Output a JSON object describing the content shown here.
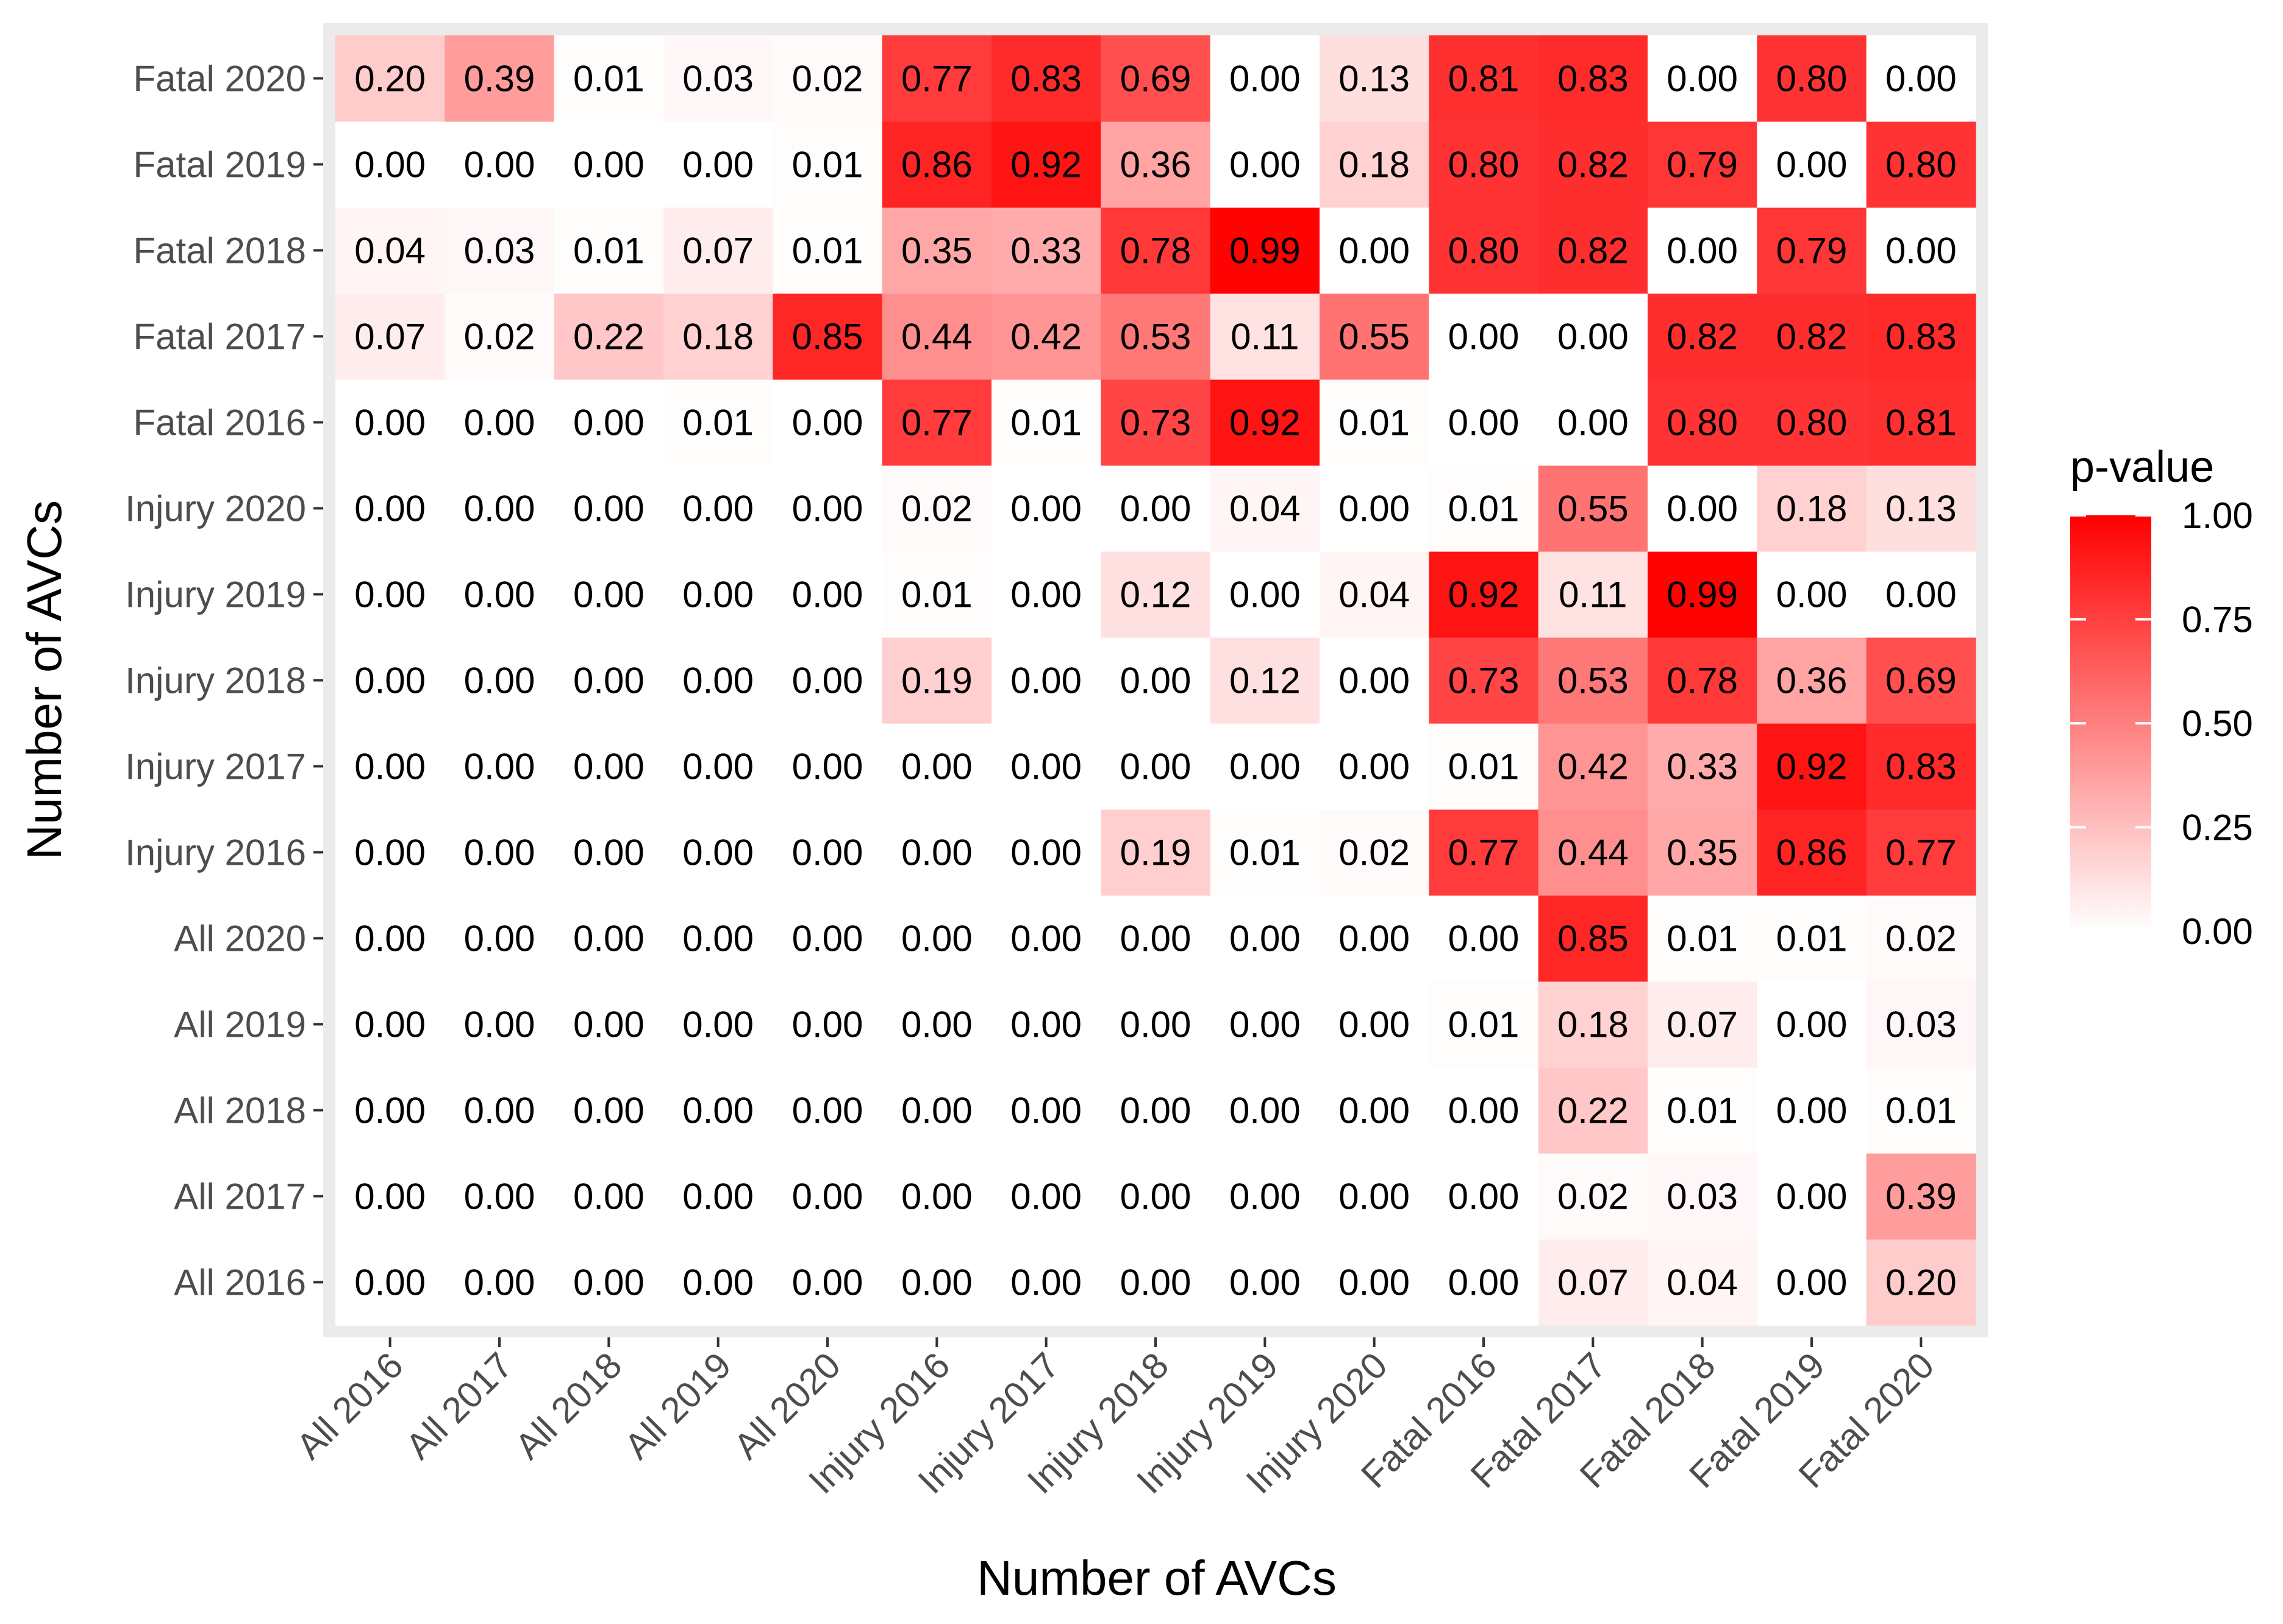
{
  "chart_data": {
    "type": "heatmap",
    "title": "",
    "xlabel": "Number of AVCs",
    "ylabel": "Number of AVCs",
    "x_categories": [
      "All 2016",
      "All 2017",
      "All 2018",
      "All 2019",
      "All 2020",
      "Injury 2016",
      "Injury 2017",
      "Injury 2018",
      "Injury 2019",
      "Injury 2020",
      "Fatal 2016",
      "Fatal 2017",
      "Fatal 2018",
      "Fatal 2019",
      "Fatal 2020"
    ],
    "y_categories": [
      "All 2016",
      "All 2017",
      "All 2018",
      "All 2019",
      "All 2020",
      "Injury 2016",
      "Injury 2017",
      "Injury 2018",
      "Injury 2019",
      "Injury 2020",
      "Fatal 2016",
      "Fatal 2017",
      "Fatal 2018",
      "Fatal 2019",
      "Fatal 2020"
    ],
    "values": [
      [
        0.0,
        0.0,
        0.0,
        0.0,
        0.0,
        0.0,
        0.0,
        0.0,
        0.0,
        0.0,
        0.0,
        0.07,
        0.04,
        0.0,
        0.2
      ],
      [
        0.0,
        0.0,
        0.0,
        0.0,
        0.0,
        0.0,
        0.0,
        0.0,
        0.0,
        0.0,
        0.0,
        0.02,
        0.03,
        0.0,
        0.39
      ],
      [
        0.0,
        0.0,
        0.0,
        0.0,
        0.0,
        0.0,
        0.0,
        0.0,
        0.0,
        0.0,
        0.0,
        0.22,
        0.01,
        0.0,
        0.01
      ],
      [
        0.0,
        0.0,
        0.0,
        0.0,
        0.0,
        0.0,
        0.0,
        0.0,
        0.0,
        0.0,
        0.01,
        0.18,
        0.07,
        0.0,
        0.03
      ],
      [
        0.0,
        0.0,
        0.0,
        0.0,
        0.0,
        0.0,
        0.0,
        0.0,
        0.0,
        0.0,
        0.0,
        0.85,
        0.01,
        0.01,
        0.02
      ],
      [
        0.0,
        0.0,
        0.0,
        0.0,
        0.0,
        0.0,
        0.0,
        0.19,
        0.01,
        0.02,
        0.77,
        0.44,
        0.35,
        0.86,
        0.77
      ],
      [
        0.0,
        0.0,
        0.0,
        0.0,
        0.0,
        0.0,
        0.0,
        0.0,
        0.0,
        0.0,
        0.01,
        0.42,
        0.33,
        0.92,
        0.83
      ],
      [
        0.0,
        0.0,
        0.0,
        0.0,
        0.0,
        0.19,
        0.0,
        0.0,
        0.12,
        0.0,
        0.73,
        0.53,
        0.78,
        0.36,
        0.69
      ],
      [
        0.0,
        0.0,
        0.0,
        0.0,
        0.0,
        0.01,
        0.0,
        0.12,
        0.0,
        0.04,
        0.92,
        0.11,
        0.99,
        0.0,
        0.0
      ],
      [
        0.0,
        0.0,
        0.0,
        0.0,
        0.0,
        0.02,
        0.0,
        0.0,
        0.04,
        0.0,
        0.01,
        0.55,
        0.0,
        0.18,
        0.13
      ],
      [
        0.0,
        0.0,
        0.0,
        0.01,
        0.0,
        0.77,
        0.01,
        0.73,
        0.92,
        0.01,
        0.0,
        0.0,
        0.8,
        0.8,
        0.81
      ],
      [
        0.07,
        0.02,
        0.22,
        0.18,
        0.85,
        0.44,
        0.42,
        0.53,
        0.11,
        0.55,
        0.0,
        0.0,
        0.82,
        0.82,
        0.83
      ],
      [
        0.04,
        0.03,
        0.01,
        0.07,
        0.01,
        0.35,
        0.33,
        0.78,
        0.99,
        0.0,
        0.8,
        0.82,
        0.0,
        0.79,
        0.0
      ],
      [
        0.0,
        0.0,
        0.0,
        0.0,
        0.01,
        0.86,
        0.92,
        0.36,
        0.0,
        0.18,
        0.8,
        0.82,
        0.79,
        0.0,
        0.8
      ],
      [
        0.2,
        0.39,
        0.01,
        0.03,
        0.02,
        0.77,
        0.83,
        0.69,
        0.0,
        0.13,
        0.81,
        0.83,
        0.0,
        0.8,
        0.0
      ]
    ],
    "legend": {
      "title": "p-value",
      "ticks": [
        "0.00",
        "0.25",
        "0.50",
        "0.75",
        "1.00"
      ],
      "tick_values": [
        0,
        0.25,
        0.5,
        0.75,
        1
      ],
      "range": [
        0,
        1
      ],
      "low_color": "#ffffff",
      "high_color": "#ff0000",
      "position": "right"
    },
    "panel_background": "#ebebeb",
    "grid": false
  }
}
